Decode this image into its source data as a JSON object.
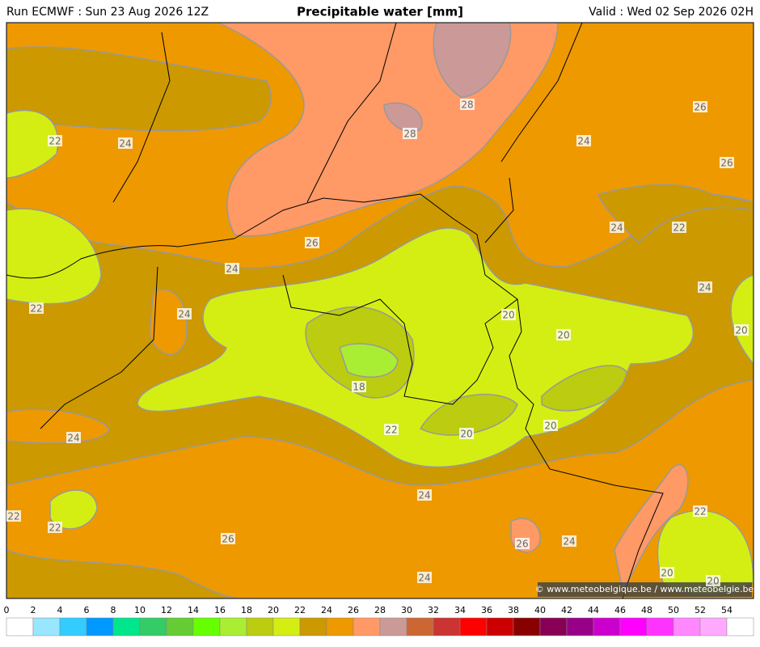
{
  "header": {
    "run": "Run ECMWF : Sun 23 Aug 2026 12Z",
    "title": "Precipitable water [mm]",
    "valid": "Valid : Wed 02 Sep 2026 02H"
  },
  "map": {
    "contour_labels": [
      22,
      24,
      28,
      28,
      26,
      24,
      26,
      24,
      22,
      26,
      24,
      24,
      22,
      24,
      20,
      20,
      20,
      18,
      22,
      20,
      20,
      24,
      24,
      22,
      22,
      22,
      26,
      26,
      24,
      24,
      20,
      20
    ]
  },
  "colorbar": {
    "ticks": [
      0,
      2,
      4,
      6,
      8,
      10,
      12,
      14,
      16,
      18,
      20,
      22,
      24,
      26,
      28,
      30,
      32,
      34,
      36,
      38,
      40,
      42,
      44,
      46,
      48,
      50,
      52,
      54
    ],
    "colors": [
      "#ffffff",
      "#99e6ff",
      "#33ccff",
      "#0099ff",
      "#00e68a",
      "#33cc66",
      "#66cc33",
      "#66ff00",
      "#aaee33",
      "#bbcc11",
      "#d4ee14",
      "#cc9900",
      "#ee9900",
      "#ff9966",
      "#cc9999",
      "#cc6633",
      "#cc3333",
      "#ff0000",
      "#cc0000",
      "#880000",
      "#880055",
      "#990088",
      "#cc00cc",
      "#ff00ff",
      "#ff33ff",
      "#ff88ff",
      "#ffaaff",
      "#ffffff"
    ]
  },
  "footer": {
    "copyright": "© www.meteobelgique.be / www.meteobelgie.be"
  }
}
